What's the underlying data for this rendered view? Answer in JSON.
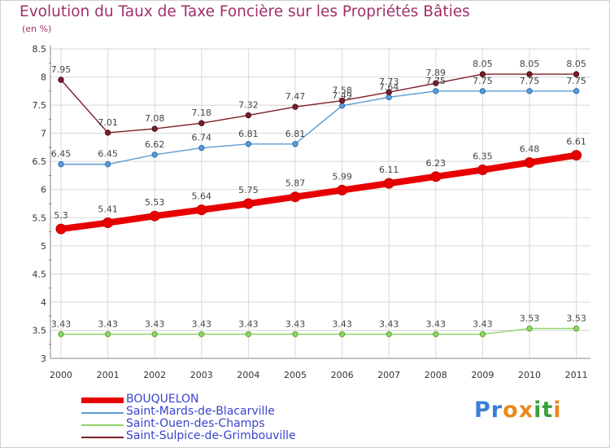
{
  "title": "Evolution du Taux de Taxe Foncière sur les Propriétés Bâties",
  "subtitle": "(en %)",
  "logo": {
    "text": "Proxiti",
    "letters": [
      "P",
      "r",
      "o",
      "x",
      "i",
      "t",
      "i"
    ],
    "colors": [
      "#3a7fd5",
      "#3a7fd5",
      "#e8891c",
      "#e8891c",
      "#3aa23a",
      "#3aa23a",
      "#e8891c"
    ]
  },
  "chart_data": {
    "type": "line",
    "title": "Evolution du Taux de Taxe Foncière sur les Propriétés Bâties",
    "subtitle": "(en %)",
    "x": [
      "2000",
      "2001",
      "2002",
      "2003",
      "2004",
      "2005",
      "2006",
      "2007",
      "2008",
      "2009",
      "2010",
      "2011"
    ],
    "ylim": [
      3,
      8.5
    ],
    "yticks": [
      "3",
      "3.5",
      "4",
      "4.5",
      "5",
      "5.5",
      "6",
      "6.5",
      "7",
      "7.5",
      "8",
      "8.5"
    ],
    "grid": true,
    "legend_position": "bottom-left",
    "series": [
      {
        "name": "BOUQUELON",
        "color": "#e80000",
        "values": [
          5.3,
          5.41,
          5.53,
          5.64,
          5.75,
          5.87,
          5.99,
          6.11,
          6.23,
          6.35,
          6.48,
          6.61
        ],
        "labels": [
          "5.3",
          "5.41",
          "5.53",
          "5.64",
          "5.75",
          "5.87",
          "5.99",
          "6.11",
          "6.23",
          "6.35",
          "6.48",
          "6.61"
        ]
      },
      {
        "name": "Saint-Mards-de-Blacarville",
        "color": "#5b9bd5",
        "values": [
          6.45,
          6.45,
          6.62,
          6.74,
          6.81,
          6.81,
          7.49,
          7.64,
          7.75,
          7.75,
          7.75,
          7.75
        ],
        "labels": [
          "6.45",
          "6.45",
          "6.62",
          "6.74",
          "6.81",
          "6.81",
          "7.49",
          "7.64",
          "7.75",
          "7.75",
          "7.75",
          "7.75"
        ]
      },
      {
        "name": "Saint-Ouen-des-Champs",
        "color": "#8fd466",
        "values": [
          3.43,
          3.43,
          3.43,
          3.43,
          3.43,
          3.43,
          3.43,
          3.43,
          3.43,
          3.43,
          3.53,
          3.53
        ],
        "labels": [
          "3.43",
          "3.43",
          "3.43",
          "3.43",
          "3.43",
          "3.43",
          "3.43",
          "3.43",
          "3.43",
          "3.43",
          "3.53",
          "3.53"
        ]
      },
      {
        "name": "Saint-Sulpice-de-Grimbouville",
        "color": "#7b1e28",
        "values": [
          7.95,
          7.01,
          7.08,
          7.18,
          7.32,
          7.47,
          7.58,
          7.73,
          7.89,
          8.05,
          8.05,
          8.05
        ],
        "labels": [
          "7.95",
          "7.01",
          "7.08",
          "7.18",
          "7.32",
          "7.47",
          "7.58",
          "7.73",
          "7.89",
          "8.05",
          "8.05",
          "8.05"
        ]
      }
    ]
  }
}
